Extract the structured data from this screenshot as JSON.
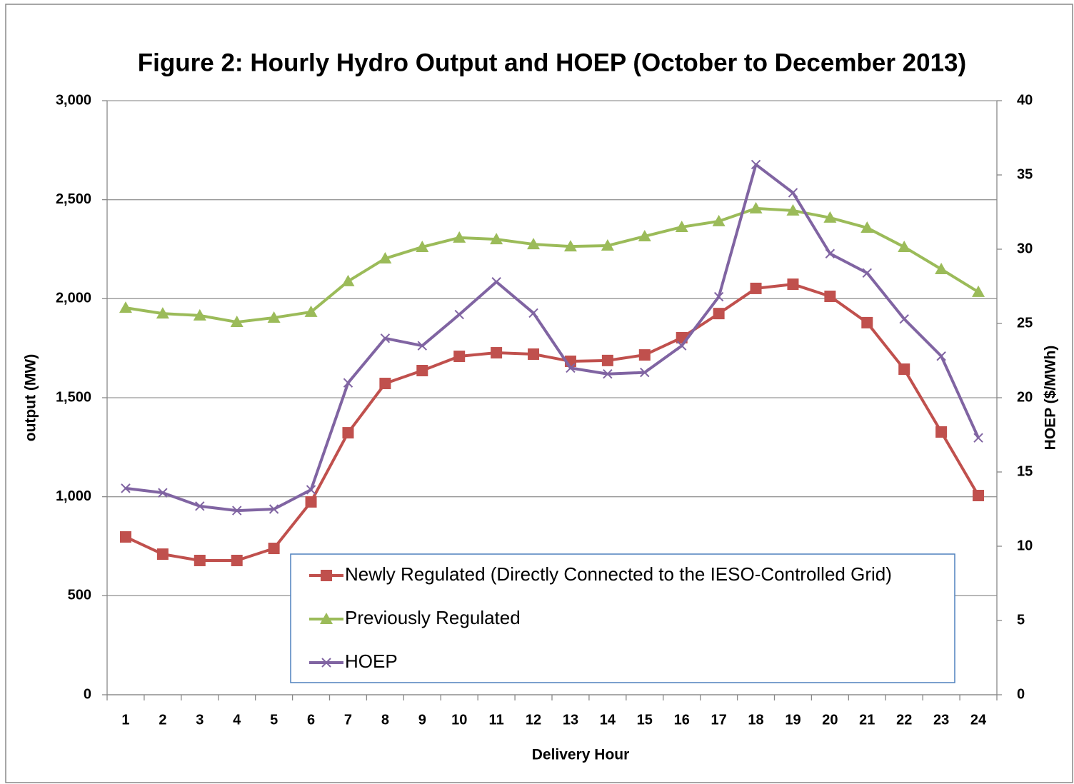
{
  "chart_data": {
    "type": "line",
    "title": "Figure 2: Hourly Hydro Output and HOEP (October to December 2013)",
    "x_label": "Delivery Hour",
    "y_label": "output (MW)",
    "y2_label": "HOEP ($/MWh)",
    "categories": [
      "1",
      "2",
      "3",
      "4",
      "5",
      "6",
      "7",
      "8",
      "9",
      "10",
      "11",
      "12",
      "13",
      "14",
      "15",
      "16",
      "17",
      "18",
      "19",
      "20",
      "21",
      "22",
      "23",
      "24"
    ],
    "series": [
      {
        "name": "Newly Regulated (Directly Connected to the IESO-Controlled Grid)",
        "color": "#c0504d",
        "marker": "square",
        "values": [
          797,
          710,
          678,
          678,
          739,
          974,
          1323,
          1572,
          1637,
          1709,
          1727,
          1720,
          1684,
          1688,
          1716,
          1803,
          1925,
          2052,
          2073,
          2012,
          1879,
          1644,
          1327,
          1006
        ]
      },
      {
        "name": "Previously Regulated",
        "color": "#9bbb59",
        "marker": "triangle",
        "values": [
          1954,
          1925,
          1915,
          1882,
          1904,
          1933,
          2088,
          2203,
          2261,
          2308,
          2300,
          2275,
          2264,
          2268,
          2315,
          2362,
          2391,
          2456,
          2445,
          2409,
          2358,
          2261,
          2149,
          2034
        ]
      },
      {
        "name": "HOEP",
        "color": "#8064a2",
        "marker": "x",
        "axis": "y2",
        "values": [
          13.9,
          13.6,
          12.7,
          12.4,
          12.5,
          13.8,
          21.0,
          24.0,
          23.5,
          25.6,
          27.8,
          25.7,
          22.0,
          21.6,
          21.7,
          23.5,
          26.8,
          35.7,
          33.8,
          29.7,
          28.4,
          25.3,
          22.8,
          17.3
        ]
      }
    ],
    "ylim": [
      0,
      3000
    ],
    "yticks": [
      0,
      500,
      {
        "value": 1000,
        "label": "1,000"
      },
      {
        "value": 1500,
        "label": "1,500"
      },
      {
        "value": 2000,
        "label": "2,000"
      },
      {
        "value": 2500,
        "label": "2,500"
      },
      {
        "value": 3000,
        "label": "3,000"
      }
    ],
    "y2lim": [
      0,
      40
    ],
    "y2ticks": [
      0,
      5,
      10,
      15,
      20,
      25,
      30,
      35,
      40
    ],
    "grid": true,
    "legend": "bottom-center"
  }
}
